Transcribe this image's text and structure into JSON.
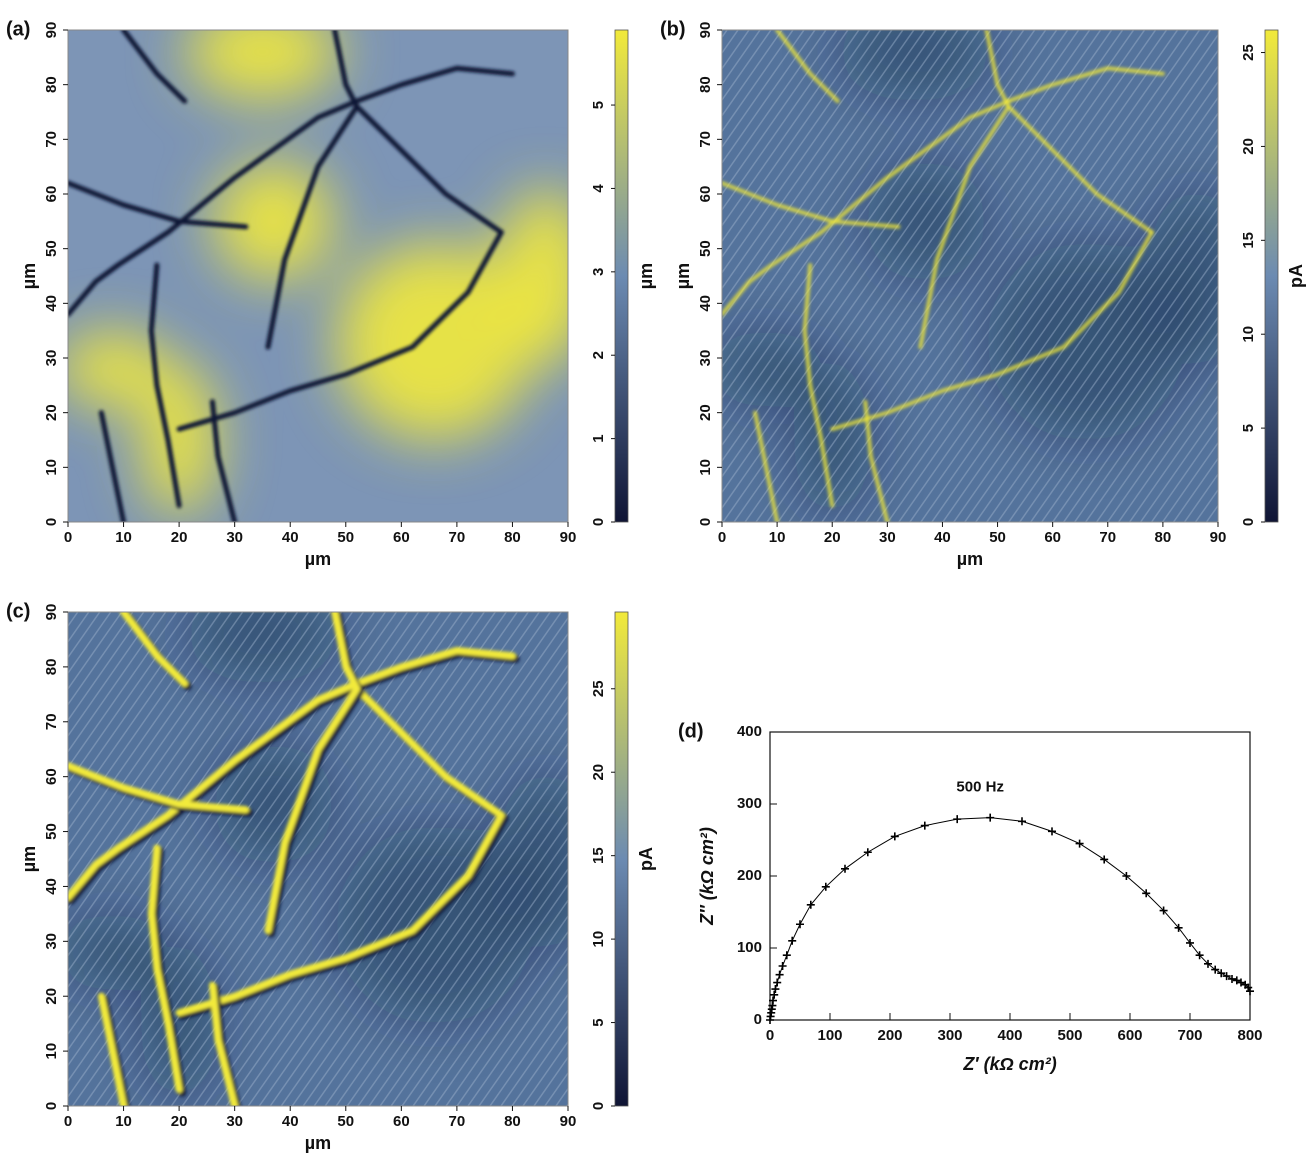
{
  "chart_data": [
    {
      "type": "heatmap",
      "label": "(a)",
      "xlabel": "µm",
      "ylabel": "µm",
      "zlabel": "µm",
      "xlim": [
        0,
        90
      ],
      "ylim": [
        0,
        90
      ],
      "xticks": [
        0,
        10,
        20,
        30,
        40,
        50,
        60,
        70,
        80,
        90
      ],
      "yticks": [
        0,
        10,
        20,
        30,
        40,
        50,
        60,
        70,
        80,
        90
      ],
      "zlim": [
        0,
        5.9
      ],
      "zticks": [
        0,
        1,
        2,
        3,
        4,
        5
      ],
      "colors": [
        "#0f1434",
        "#6c8bb2",
        "#f2ea3a"
      ]
    },
    {
      "type": "heatmap",
      "label": "(b)",
      "xlabel": "µm",
      "ylabel": "µm",
      "zlabel": "pA",
      "xlim": [
        0,
        90
      ],
      "ylim": [
        0,
        90
      ],
      "xticks": [
        0,
        10,
        20,
        30,
        40,
        50,
        60,
        70,
        80,
        90
      ],
      "yticks": [
        0,
        10,
        20,
        30,
        40,
        50,
        60,
        70,
        80,
        90
      ],
      "zlim": [
        0,
        26.2
      ],
      "zticks": [
        0,
        5,
        10,
        15,
        20,
        25
      ],
      "colors": [
        "#0f1434",
        "#6c8bb2",
        "#f2ea3a"
      ]
    },
    {
      "type": "heatmap",
      "label": "(c)",
      "xlabel": "µm",
      "ylabel": "µm",
      "zlabel": "pA",
      "xlim": [
        0,
        90
      ],
      "ylim": [
        0,
        90
      ],
      "xticks": [
        0,
        10,
        20,
        30,
        40,
        50,
        60,
        70,
        80,
        90
      ],
      "yticks": [
        0,
        10,
        20,
        30,
        40,
        50,
        60,
        70,
        80,
        90
      ],
      "zlim": [
        0,
        29.6
      ],
      "zticks": [
        0,
        5,
        10,
        15,
        20,
        25
      ],
      "colors": [
        "#0f1434",
        "#6c8bb2",
        "#f2ea3a"
      ]
    },
    {
      "type": "line",
      "label": "(d)",
      "xlabel": "Z′ (kΩ cm²)",
      "ylabel": "Z″ (kΩ cm²)",
      "annotations": [
        "500 Hz"
      ],
      "xlim": [
        0,
        800
      ],
      "ylim": [
        0,
        400
      ],
      "xticks": [
        0,
        100,
        200,
        300,
        400,
        500,
        600,
        700,
        800
      ],
      "yticks": [
        0,
        100,
        200,
        300,
        400
      ],
      "color": "#000000",
      "marker": "+",
      "x": [
        0,
        1,
        2,
        3,
        4,
        5,
        7,
        9,
        12,
        16,
        21,
        28,
        37,
        50,
        68,
        93,
        125,
        163,
        208,
        258,
        312,
        367,
        420,
        470,
        516,
        557,
        594,
        627,
        656,
        681,
        700,
        716,
        730,
        742,
        752,
        761,
        770,
        778,
        785,
        792,
        797,
        800
      ],
      "values": [
        0,
        5,
        10,
        15,
        20,
        27,
        35,
        43,
        52,
        63,
        75,
        90,
        110,
        133,
        160,
        185,
        210,
        233,
        255,
        270,
        279,
        281,
        276,
        262,
        245,
        223,
        200,
        176,
        152,
        128,
        107,
        90,
        78,
        70,
        65,
        61,
        57,
        55,
        52,
        49,
        45,
        40
      ]
    }
  ]
}
